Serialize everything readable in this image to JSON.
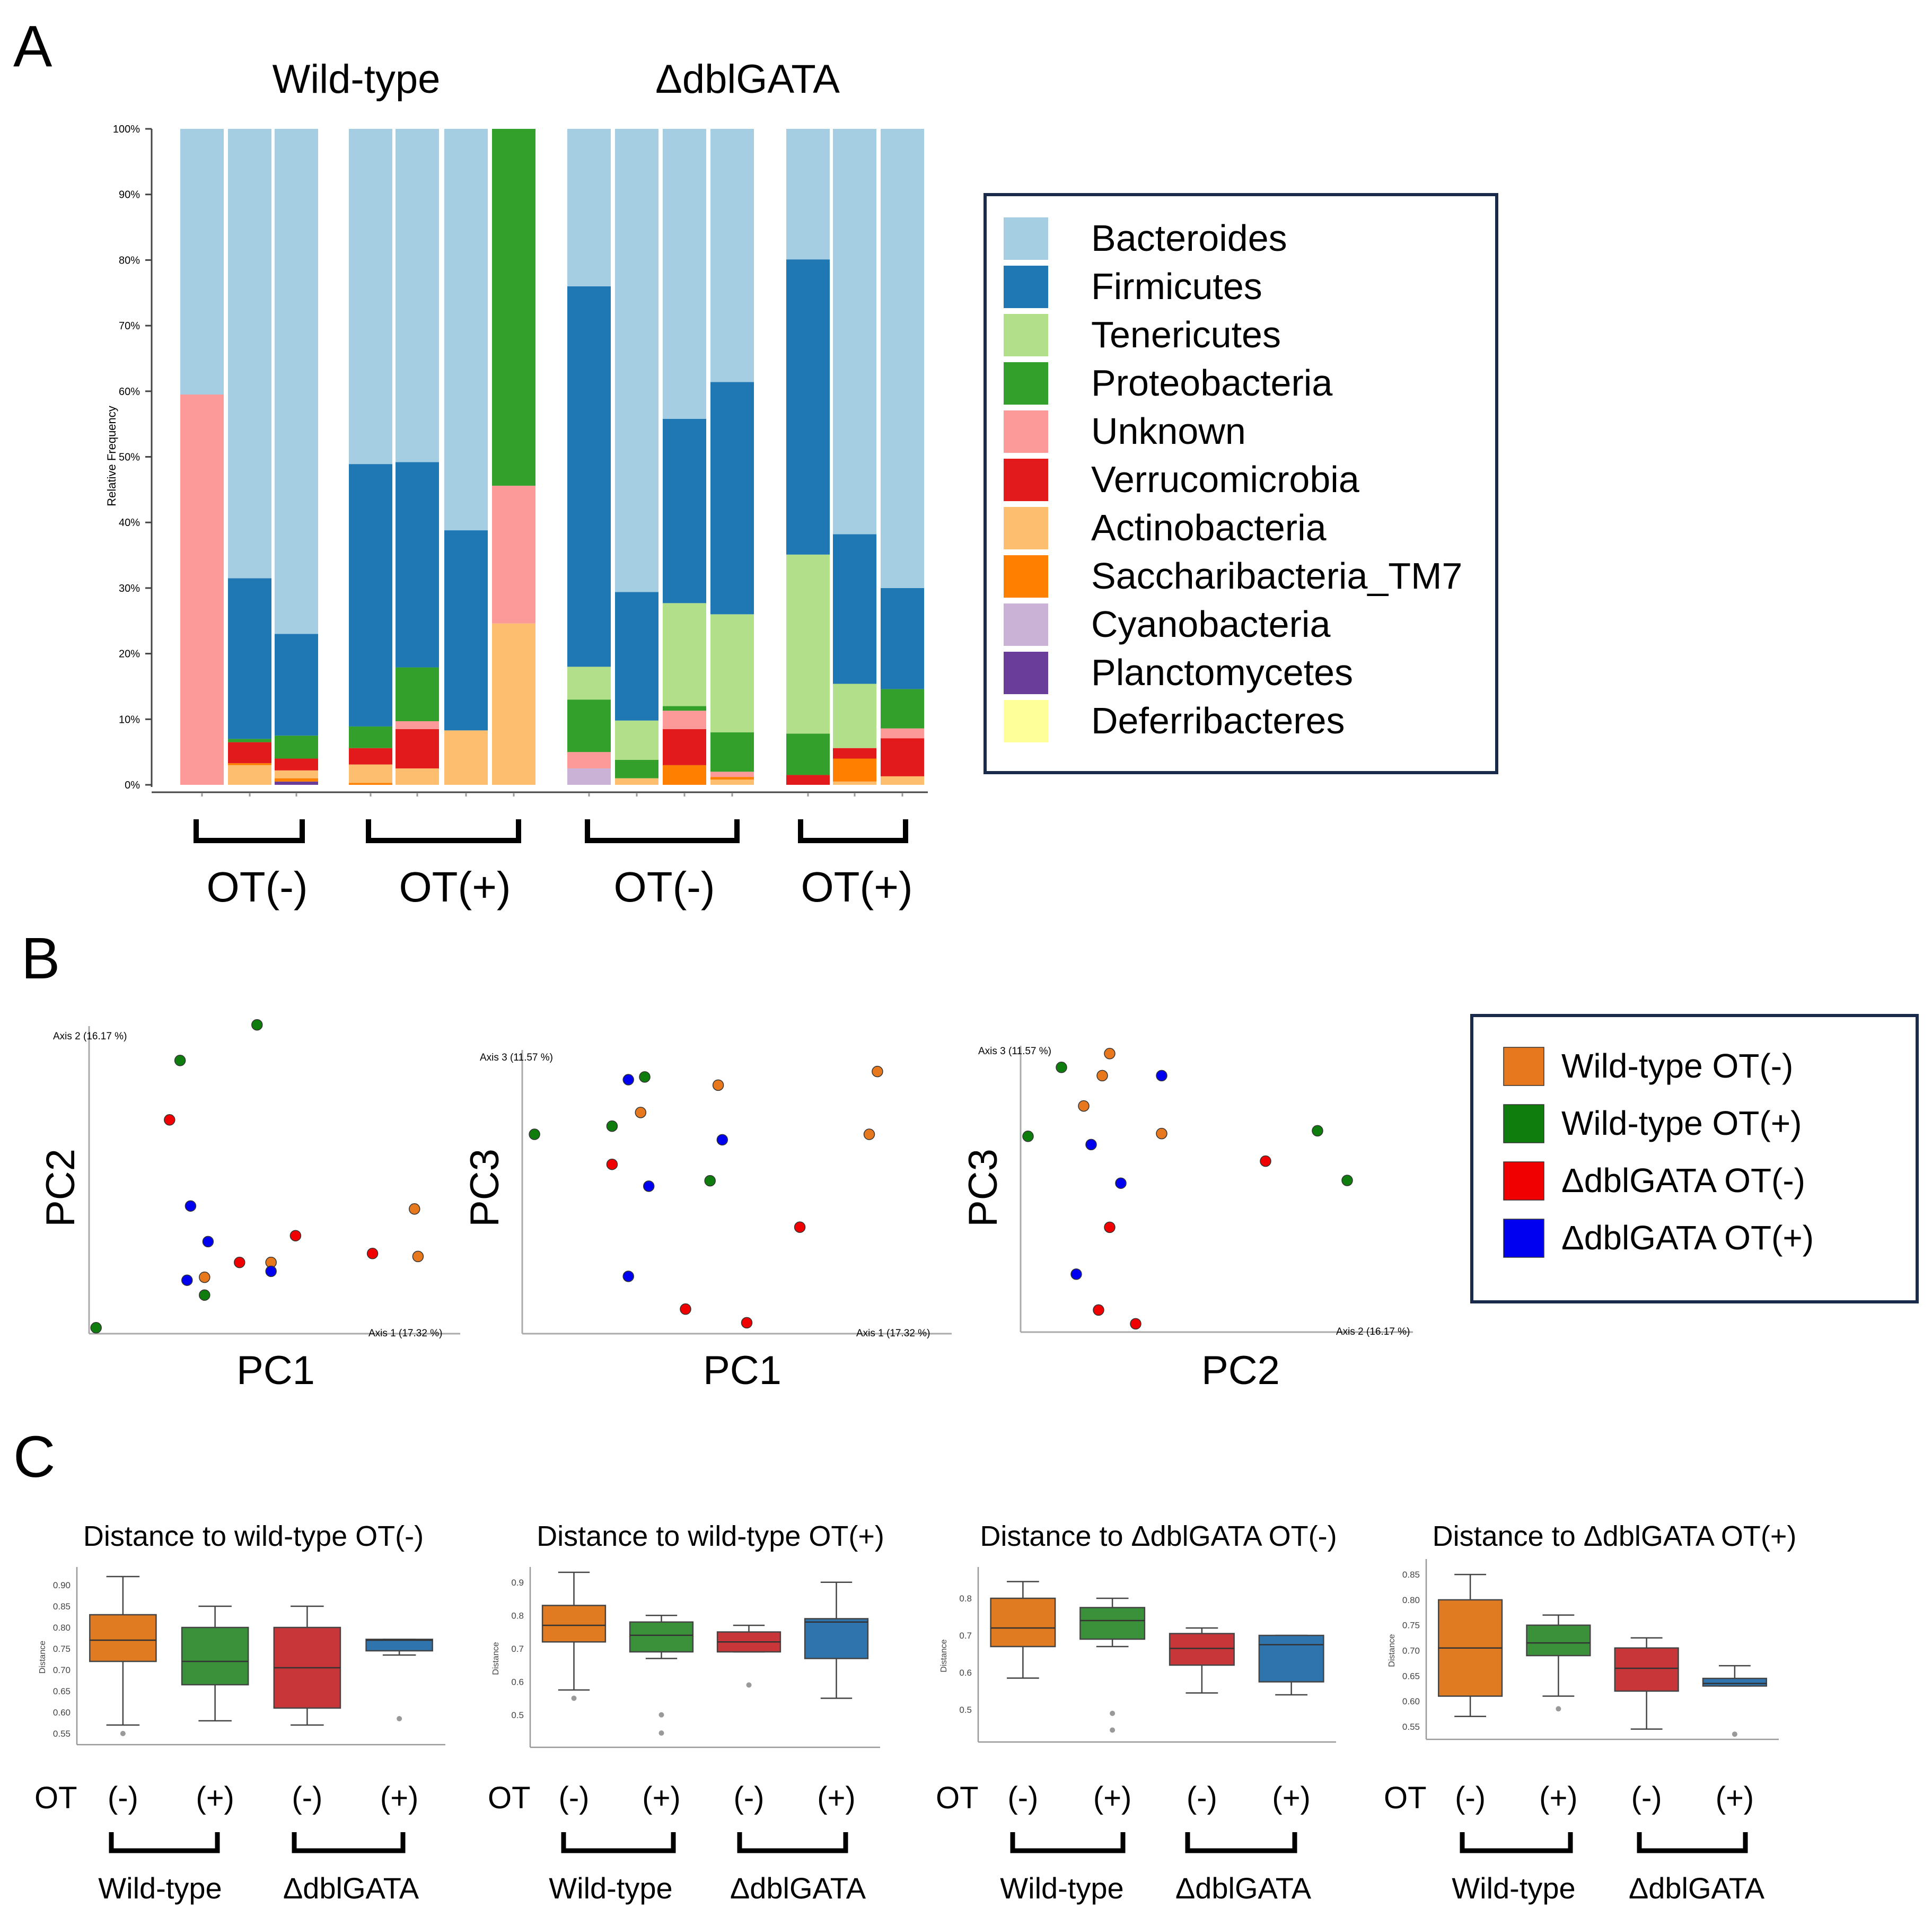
{
  "colors": {
    "Bacteroides": "#a6cee3",
    "Firmicutes": "#1f78b4",
    "Tenericutes": "#b2df8a",
    "Proteobacteria": "#33a02c",
    "Unknown": "#fb9a99",
    "Verrucomicrobia": "#e31a1c",
    "Actinobacteria": "#fdbf6f",
    "Saccharibacteria_TM7": "#ff7f00",
    "Cyanobacteria": "#cab2d6",
    "Planctomycetes": "#6a3d9a",
    "Deferribacteres": "#ffff99",
    "box_wt_minus": "#e07b22",
    "box_wt_plus": "#3a913a",
    "box_dbl_minus": "#c8363a",
    "box_dbl_plus": "#2f74ad",
    "pt_wt_minus": "#e8781e",
    "pt_wt_plus": "#0e7d0e",
    "pt_dbl_minus": "#f00000",
    "pt_dbl_plus": "#0000f0"
  },
  "panel_labels": {
    "a": "A",
    "b": "B",
    "c": "C"
  },
  "chart_data": [
    {
      "id": "A",
      "type": "bar",
      "stacked": true,
      "group_titles": [
        "Wild-type",
        "ΔdblGATA"
      ],
      "bracket_labels": [
        "OT(-)",
        "OT(+)",
        "OT(-)",
        "OT(+)"
      ],
      "ylabel": "Relative Frequency",
      "ylim": [
        0,
        100
      ],
      "yticks": [
        "0%",
        "10%",
        "20%",
        "30%",
        "40%",
        "50%",
        "60%",
        "70%",
        "80%",
        "90%",
        "100%"
      ],
      "legend_position": "right",
      "legend_order": [
        "Bacteroides",
        "Firmicutes",
        "Tenericutes",
        "Proteobacteria",
        "Unknown",
        "Verrucomicrobia",
        "Actinobacteria",
        "Saccharibacteria_TM7",
        "Cyanobacteria",
        "Planctomycetes",
        "Deferribacteres"
      ],
      "samples": [
        {
          "group": "WT OT(-)",
          "segments": [
            [
              "Unknown",
              59.5
            ],
            [
              "Bacteroides",
              40.5
            ]
          ]
        },
        {
          "group": "WT OT(-)",
          "segments": [
            [
              "Actinobacteria",
              3
            ],
            [
              "Saccharibacteria_TM7",
              0.3
            ],
            [
              "Verrucomicrobia",
              3.2
            ],
            [
              "Proteobacteria",
              0.5
            ],
            [
              "Firmicutes",
              24.5
            ],
            [
              "Bacteroides",
              68.5
            ]
          ]
        },
        {
          "group": "WT OT(-)",
          "segments": [
            [
              "Planctomycetes",
              0.5
            ],
            [
              "Saccharibacteria_TM7",
              0.5
            ],
            [
              "Actinobacteria",
              1.2
            ],
            [
              "Verrucomicrobia",
              1.8
            ],
            [
              "Proteobacteria",
              3.5
            ],
            [
              "Firmicutes",
              15.5
            ],
            [
              "Bacteroides",
              77
            ]
          ]
        },
        {
          "group": "WT OT(+)",
          "segments": [
            [
              "Saccharibacteria_TM7",
              0.3
            ],
            [
              "Actinobacteria",
              2.8
            ],
            [
              "Verrucomicrobia",
              2.5
            ],
            [
              "Proteobacteria",
              3.3
            ],
            [
              "Firmicutes",
              40
            ],
            [
              "Bacteroides",
              51.1
            ]
          ]
        },
        {
          "group": "WT OT(+)",
          "segments": [
            [
              "Actinobacteria",
              2.5
            ],
            [
              "Verrucomicrobia",
              6
            ],
            [
              "Unknown",
              1.2
            ],
            [
              "Proteobacteria",
              8.2
            ],
            [
              "Firmicutes",
              31.3
            ],
            [
              "Bacteroides",
              50.8
            ]
          ]
        },
        {
          "group": "WT OT(+)",
          "segments": [
            [
              "Actinobacteria",
              8.3
            ],
            [
              "Firmicutes",
              30.5
            ],
            [
              "Bacteroides",
              61.2
            ]
          ]
        },
        {
          "group": "WT OT(+)",
          "segments": [
            [
              "Actinobacteria",
              24.6
            ],
            [
              "Unknown",
              21
            ],
            [
              "Proteobacteria",
              54.4
            ]
          ]
        },
        {
          "group": "ΔdblGATA OT(-)",
          "segments": [
            [
              "Cyanobacteria",
              2.5
            ],
            [
              "Unknown",
              2.5
            ],
            [
              "Proteobacteria",
              8
            ],
            [
              "Tenericutes",
              5
            ],
            [
              "Firmicutes",
              58
            ],
            [
              "Bacteroides",
              24
            ]
          ]
        },
        {
          "group": "ΔdblGATA OT(-)",
          "segments": [
            [
              "Actinobacteria",
              1
            ],
            [
              "Proteobacteria",
              2.8
            ],
            [
              "Tenericutes",
              6
            ],
            [
              "Firmicutes",
              19.6
            ],
            [
              "Bacteroides",
              70.6
            ]
          ]
        },
        {
          "group": "ΔdblGATA OT(-)",
          "segments": [
            [
              "Saccharibacteria_TM7",
              3
            ],
            [
              "Verrucomicrobia",
              5.5
            ],
            [
              "Unknown",
              2.8
            ],
            [
              "Proteobacteria",
              0.7
            ],
            [
              "Tenericutes",
              15.7
            ],
            [
              "Firmicutes",
              28.1
            ],
            [
              "Bacteroides",
              44.2
            ]
          ]
        },
        {
          "group": "ΔdblGATA OT(-)",
          "segments": [
            [
              "Actinobacteria",
              0.8
            ],
            [
              "Saccharibacteria_TM7",
              0.4
            ],
            [
              "Unknown",
              0.8
            ],
            [
              "Proteobacteria",
              6
            ],
            [
              "Tenericutes",
              18
            ],
            [
              "Firmicutes",
              35.4
            ],
            [
              "Bacteroides",
              38.6
            ]
          ]
        },
        {
          "group": "ΔdblGATA OT(+)",
          "segments": [
            [
              "Verrucomicrobia",
              1.5
            ],
            [
              "Proteobacteria",
              6.3
            ],
            [
              "Tenericutes",
              27.3
            ],
            [
              "Firmicutes",
              45
            ],
            [
              "Bacteroides",
              19.9
            ]
          ]
        },
        {
          "group": "ΔdblGATA OT(+)",
          "segments": [
            [
              "Actinobacteria",
              0.5
            ],
            [
              "Saccharibacteria_TM7",
              3.5
            ],
            [
              "Verrucomicrobia",
              1.6
            ],
            [
              "Tenericutes",
              9.8
            ],
            [
              "Firmicutes",
              22.8
            ],
            [
              "Bacteroides",
              61.8
            ]
          ]
        },
        {
          "group": "ΔdblGATA OT(+)",
          "segments": [
            [
              "Actinobacteria",
              1.3
            ],
            [
              "Verrucomicrobia",
              5.8
            ],
            [
              "Unknown",
              1.5
            ],
            [
              "Proteobacteria",
              6
            ],
            [
              "Firmicutes",
              15.4
            ],
            [
              "Bacteroides",
              70
            ]
          ]
        }
      ]
    },
    {
      "id": "B",
      "type": "scatter",
      "legend": [
        "Wild-type OT(-)",
        "Wild-type OT(+)",
        "ΔdblGATA OT(-)",
        "ΔdblGATA OT(+)"
      ],
      "legend_position": "right",
      "plots": [
        {
          "xlabel": "PC1",
          "ylabel": "PC2",
          "x_axis_caption": "Axis 1 (17.32 %)",
          "y_axis_caption": "Axis 2 (16.17 %)",
          "xlim": [
            0,
            100
          ],
          "ylim": [
            0,
            100
          ],
          "points": [
            {
              "g": 1,
              "x": 2,
              "y": 2
            },
            {
              "g": 1,
              "x": 26,
              "y": 92
            },
            {
              "g": 1,
              "x": 48,
              "y": 104
            },
            {
              "g": 1,
              "x": 33,
              "y": 13
            },
            {
              "g": 0,
              "x": 33,
              "y": 19
            },
            {
              "g": 0,
              "x": 52,
              "y": 24
            },
            {
              "g": 0,
              "x": 93,
              "y": 42
            },
            {
              "g": 0,
              "x": 94,
              "y": 26
            },
            {
              "g": 2,
              "x": 23,
              "y": 72
            },
            {
              "g": 2,
              "x": 43,
              "y": 24
            },
            {
              "g": 2,
              "x": 59,
              "y": 33
            },
            {
              "g": 2,
              "x": 81,
              "y": 27
            },
            {
              "g": 3,
              "x": 29,
              "y": 43
            },
            {
              "g": 3,
              "x": 34,
              "y": 31
            },
            {
              "g": 3,
              "x": 28,
              "y": 18
            },
            {
              "g": 3,
              "x": 52,
              "y": 21
            }
          ]
        },
        {
          "xlabel": "PC1",
          "ylabel": "PC3",
          "x_axis_caption": "Axis 1 (17.32 %)",
          "y_axis_caption": "Axis 3 (11.57 %)",
          "xlim": [
            0,
            100
          ],
          "ylim": [
            0,
            100
          ],
          "points": [
            {
              "g": 1,
              "x": 3,
              "y": 73
            },
            {
              "g": 1,
              "x": 22,
              "y": 76
            },
            {
              "g": 1,
              "x": 30,
              "y": 94
            },
            {
              "g": 1,
              "x": 46,
              "y": 56
            },
            {
              "g": 0,
              "x": 29,
              "y": 81
            },
            {
              "g": 0,
              "x": 48,
              "y": 91
            },
            {
              "g": 0,
              "x": 87,
              "y": 96
            },
            {
              "g": 0,
              "x": 85,
              "y": 73
            },
            {
              "g": 2,
              "x": 22,
              "y": 62
            },
            {
              "g": 2,
              "x": 68,
              "y": 39
            },
            {
              "g": 2,
              "x": 40,
              "y": 9
            },
            {
              "g": 2,
              "x": 55,
              "y": 4
            },
            {
              "g": 3,
              "x": 26,
              "y": 93
            },
            {
              "g": 3,
              "x": 49,
              "y": 71
            },
            {
              "g": 3,
              "x": 31,
              "y": 54
            },
            {
              "g": 3,
              "x": 26,
              "y": 21
            }
          ]
        },
        {
          "xlabel": "PC2",
          "ylabel": "PC3",
          "x_axis_caption": "Axis 2 (16.17 %)",
          "y_axis_caption": "Axis 3 (11.57 %)",
          "xlim": [
            0,
            100
          ],
          "ylim": [
            0,
            100
          ],
          "points": [
            {
              "g": 1,
              "x": 11,
              "y": 96
            },
            {
              "g": 1,
              "x": 2,
              "y": 71
            },
            {
              "g": 1,
              "x": 80,
              "y": 73
            },
            {
              "g": 1,
              "x": 88,
              "y": 55
            },
            {
              "g": 0,
              "x": 24,
              "y": 101
            },
            {
              "g": 0,
              "x": 22,
              "y": 93
            },
            {
              "g": 0,
              "x": 17,
              "y": 82
            },
            {
              "g": 0,
              "x": 38,
              "y": 72
            },
            {
              "g": 2,
              "x": 66,
              "y": 62
            },
            {
              "g": 2,
              "x": 24,
              "y": 38
            },
            {
              "g": 2,
              "x": 21,
              "y": 8
            },
            {
              "g": 2,
              "x": 31,
              "y": 3
            },
            {
              "g": 3,
              "x": 38,
              "y": 93
            },
            {
              "g": 3,
              "x": 19,
              "y": 68
            },
            {
              "g": 3,
              "x": 27,
              "y": 54
            },
            {
              "g": 3,
              "x": 15,
              "y": 21
            }
          ]
        }
      ]
    },
    {
      "id": "C",
      "type": "box",
      "ylabel": "Distance",
      "ot_label": "OT",
      "tick_labels": [
        "(-)",
        "(+)",
        "(-)",
        "(+)"
      ],
      "group_labels": [
        "Wild-type",
        "ΔdblGATA"
      ],
      "panels": [
        {
          "title": "Distance to wild-type OT(-)",
          "ylim": [
            0.53,
            0.93
          ],
          "yticks": [
            "0.55",
            "0.60",
            "0.65",
            "0.70",
            "0.75",
            "0.80",
            "0.85",
            "0.90"
          ],
          "boxes": [
            {
              "whislo": 0.57,
              "q1": 0.72,
              "med": 0.77,
              "q3": 0.83,
              "whishi": 0.92,
              "fliers": [
                0.55
              ]
            },
            {
              "whislo": 0.58,
              "q1": 0.665,
              "med": 0.72,
              "q3": 0.8,
              "whishi": 0.85,
              "fliers": []
            },
            {
              "whislo": 0.57,
              "q1": 0.61,
              "med": 0.705,
              "q3": 0.8,
              "whishi": 0.85,
              "fliers": []
            },
            {
              "whislo": 0.735,
              "q1": 0.745,
              "med": 0.77,
              "q3": 0.772,
              "whishi": 0.772,
              "fliers": [
                0.585
              ]
            }
          ]
        },
        {
          "title": "Distance to wild-type OT(+)",
          "ylim": [
            0.41,
            0.93
          ],
          "yticks": [
            "0.5",
            "0.6",
            "0.7",
            "0.8",
            "0.9"
          ],
          "boxes": [
            {
              "whislo": 0.575,
              "q1": 0.72,
              "med": 0.77,
              "q3": 0.83,
              "whishi": 0.93,
              "fliers": [
                0.55
              ]
            },
            {
              "whislo": 0.67,
              "q1": 0.69,
              "med": 0.74,
              "q3": 0.78,
              "whishi": 0.8,
              "fliers": [
                0.5,
                0.445
              ]
            },
            {
              "whislo": 0.69,
              "q1": 0.69,
              "med": 0.72,
              "q3": 0.75,
              "whishi": 0.77,
              "fliers": [
                0.59
              ]
            },
            {
              "whislo": 0.55,
              "q1": 0.67,
              "med": 0.78,
              "q3": 0.79,
              "whishi": 0.9,
              "fliers": []
            }
          ]
        },
        {
          "title": "Distance to ΔdblGATA OT(-)",
          "ylim": [
            0.42,
            0.87
          ],
          "yticks": [
            "0.5",
            "0.6",
            "0.7",
            "0.8"
          ],
          "boxes": [
            {
              "whislo": 0.585,
              "q1": 0.67,
              "med": 0.72,
              "q3": 0.8,
              "whishi": 0.845,
              "fliers": []
            },
            {
              "whislo": 0.67,
              "q1": 0.69,
              "med": 0.74,
              "q3": 0.775,
              "whishi": 0.8,
              "fliers": [
                0.49,
                0.445
              ]
            },
            {
              "whislo": 0.545,
              "q1": 0.62,
              "med": 0.665,
              "q3": 0.705,
              "whishi": 0.72,
              "fliers": []
            },
            {
              "whislo": 0.54,
              "q1": 0.575,
              "med": 0.675,
              "q3": 0.7,
              "whishi": 0.7,
              "fliers": []
            }
          ]
        },
        {
          "title": "Distance to ΔdblGATA OT(+)",
          "ylim": [
            0.53,
            0.87
          ],
          "yticks": [
            "0.55",
            "0.60",
            "0.65",
            "0.70",
            "0.75",
            "0.80",
            "0.85"
          ],
          "boxes": [
            {
              "whislo": 0.57,
              "q1": 0.61,
              "med": 0.705,
              "q3": 0.8,
              "whishi": 0.85,
              "fliers": []
            },
            {
              "whislo": 0.61,
              "q1": 0.69,
              "med": 0.715,
              "q3": 0.75,
              "whishi": 0.77,
              "fliers": [
                0.585
              ]
            },
            {
              "whislo": 0.545,
              "q1": 0.62,
              "med": 0.665,
              "q3": 0.705,
              "whishi": 0.725,
              "fliers": []
            },
            {
              "whislo": 0.63,
              "q1": 0.63,
              "med": 0.635,
              "q3": 0.645,
              "whishi": 0.67,
              "fliers": [
                0.535
              ]
            }
          ]
        }
      ]
    }
  ]
}
